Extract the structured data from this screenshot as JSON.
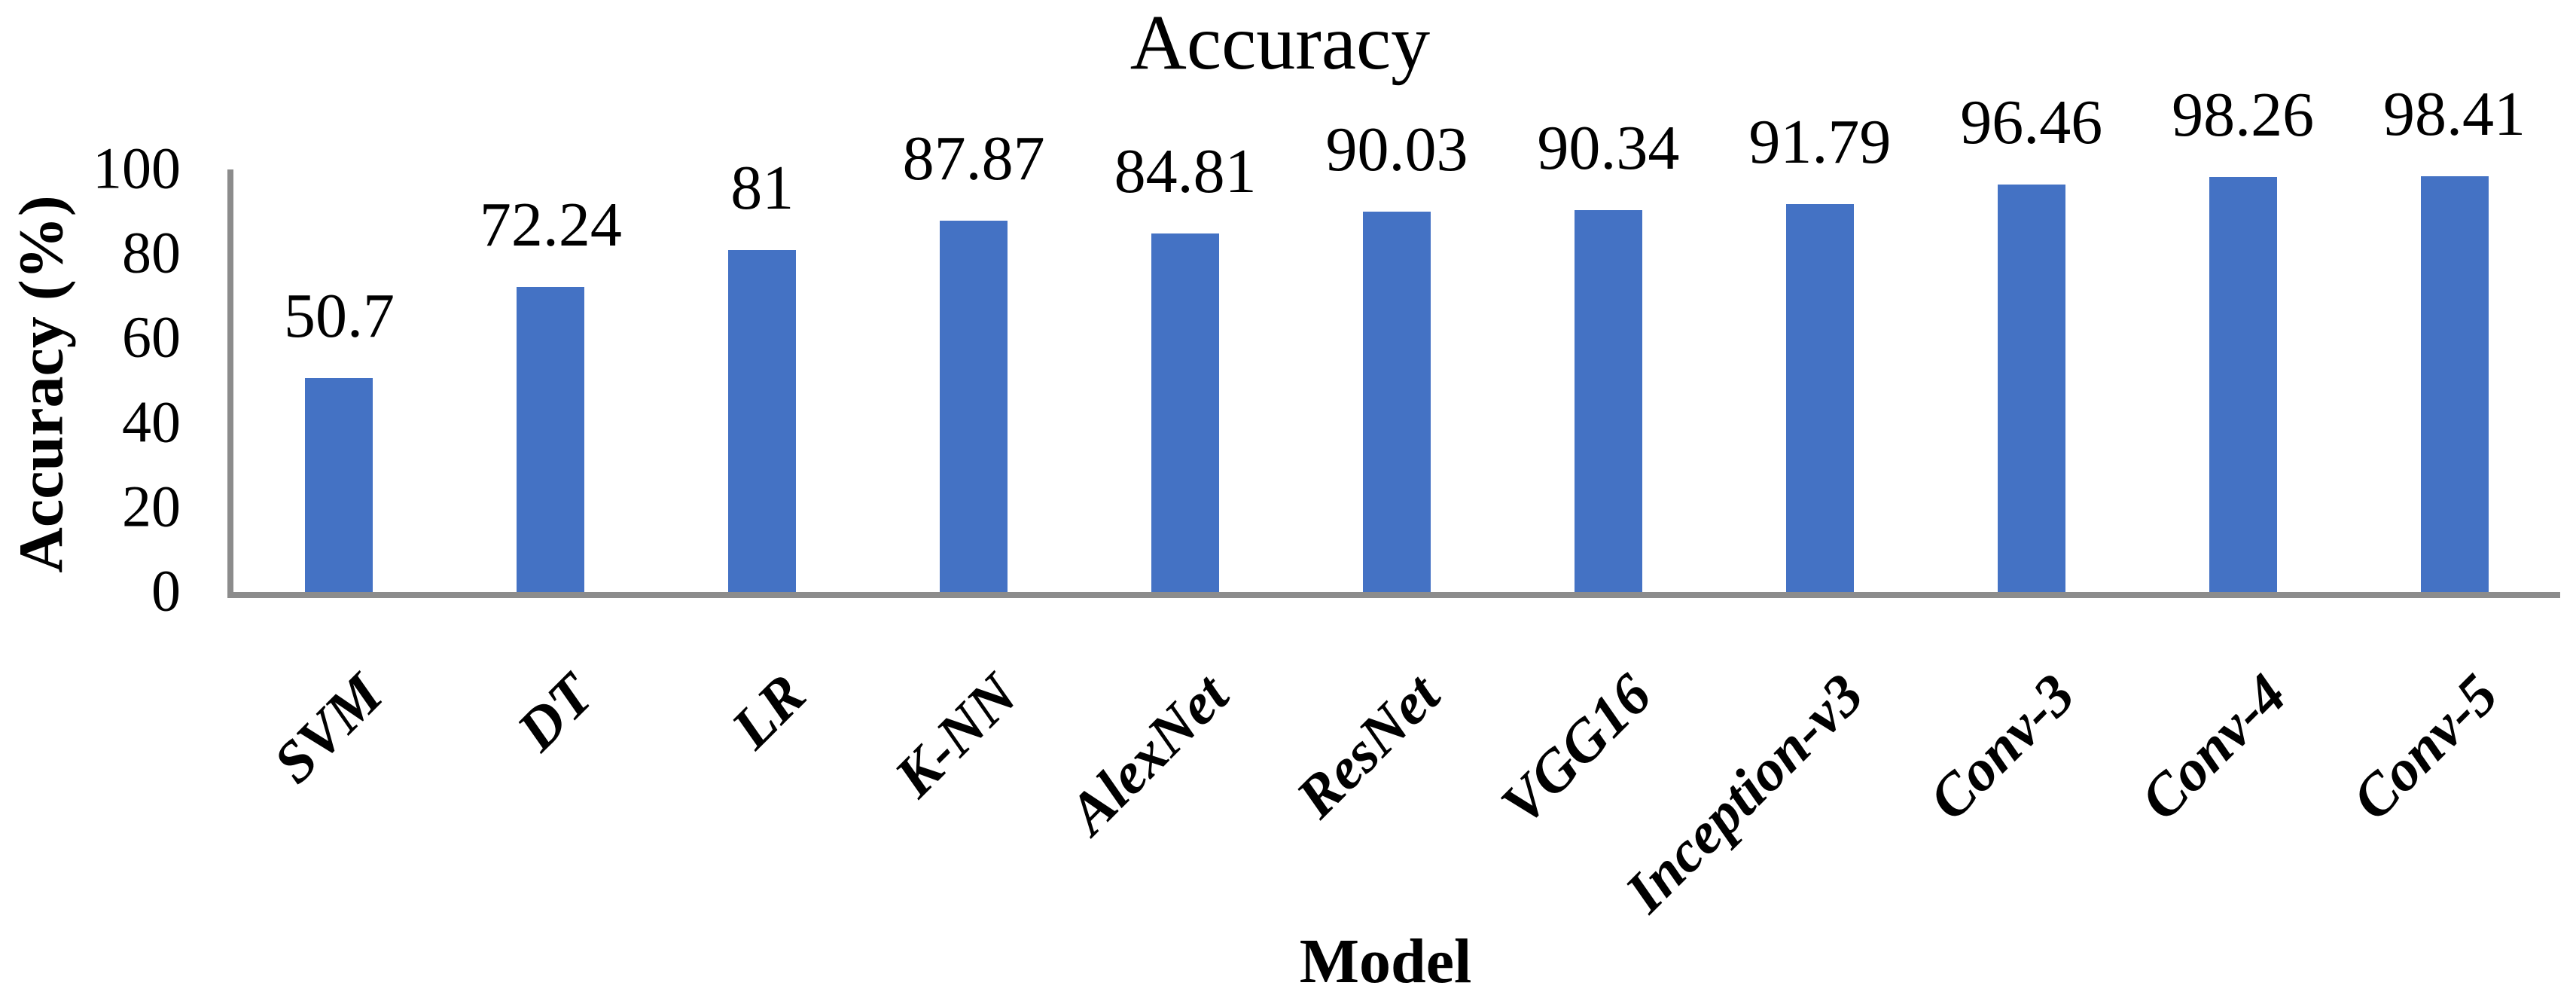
{
  "chart_data": {
    "type": "bar",
    "title": "Accuracy",
    "xlabel": "Model",
    "ylabel": "Accuracy (%)",
    "categories": [
      "SVM",
      "DT",
      "LR",
      "K-NN",
      "AlexNet",
      "ResNet",
      "VGG16",
      "Inception-v3",
      "Conv-3",
      "Conv-4",
      "Conv-5"
    ],
    "values": [
      50.7,
      72.24,
      81,
      87.87,
      84.81,
      90.03,
      90.34,
      91.79,
      96.46,
      98.26,
      98.41
    ],
    "value_labels": [
      "50.7",
      "72.24",
      "81",
      "87.87",
      "84.81",
      "90.03",
      "90.34",
      "91.79",
      "96.46",
      "98.26",
      "98.41"
    ],
    "ylim": [
      0,
      100
    ],
    "yticks": [
      0,
      20,
      40,
      60,
      80,
      100
    ],
    "grid": false,
    "legend": "none",
    "bar_color": "#4472C4",
    "axis_color": "#8C8C8C",
    "text_color": "#000000",
    "background": "#FFFFFF"
  }
}
